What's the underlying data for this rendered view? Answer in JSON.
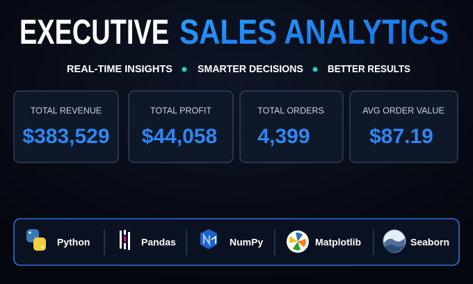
{
  "header": {
    "title_white": "EXECUTIVE",
    "title_blue": "SALES ANALYTICS",
    "tagline": [
      "REAL-TIME INSIGHTS",
      "SMARTER DECISIONS",
      "BETTER RESULTS"
    ]
  },
  "kpis": [
    {
      "label": "TOTAL REVENUE",
      "value": "$383,529"
    },
    {
      "label": "TOTAL PROFIT",
      "value": "$44,058"
    },
    {
      "label": "TOTAL ORDERS",
      "value": "4,399"
    },
    {
      "label": "AVG ORDER VALUE",
      "value": "$87.19"
    }
  ],
  "tools": [
    "Python",
    "Pandas",
    "NumPy",
    "Matplotlib",
    "Seaborn"
  ]
}
